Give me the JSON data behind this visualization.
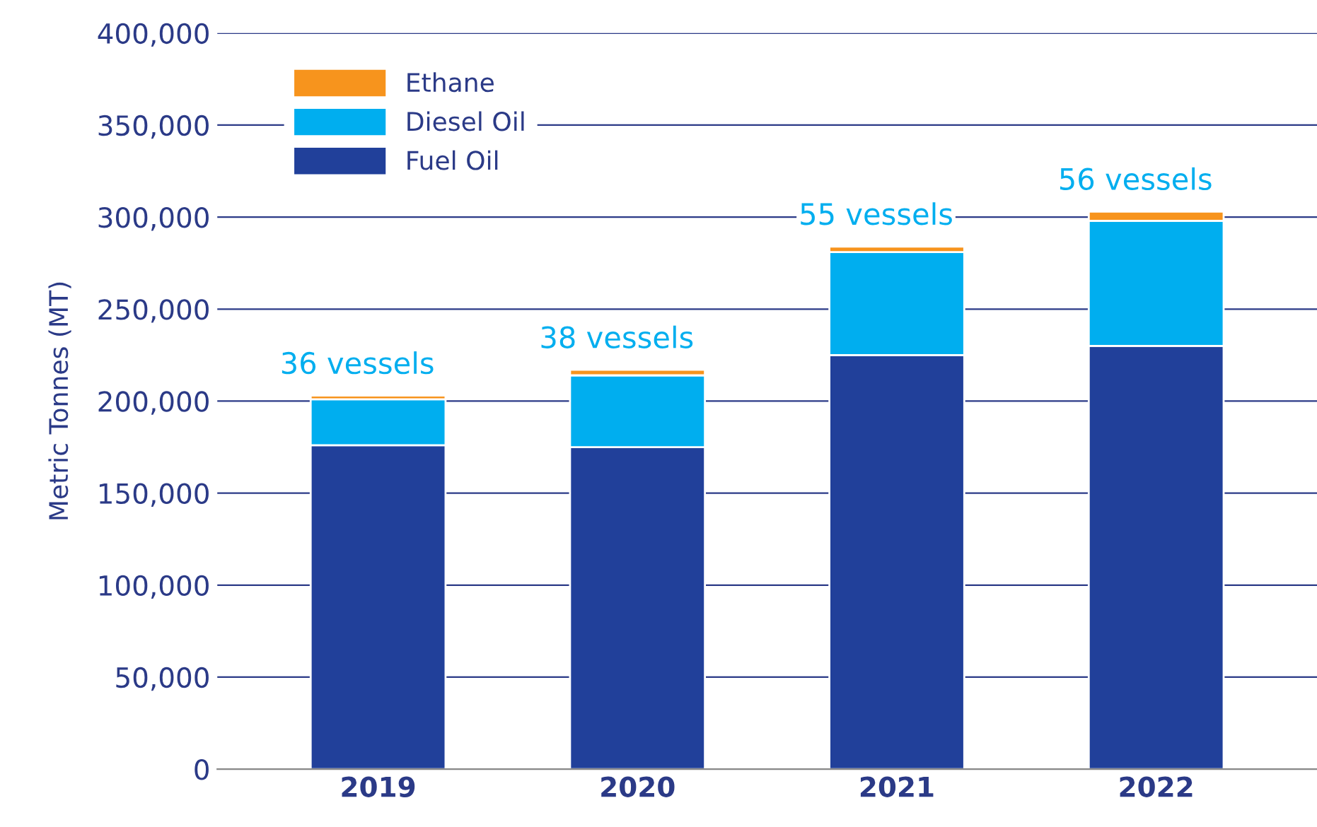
{
  "chart_data": {
    "type": "bar",
    "stacked": true,
    "categories": [
      "2019",
      "2020",
      "2021",
      "2022"
    ],
    "ylabel": "Metric Tonnes (MT)",
    "series": [
      {
        "name": "Fuel Oil",
        "color": "#21409a",
        "values": [
          176000,
          175000,
          225000,
          230000
        ]
      },
      {
        "name": "Diesel Oil",
        "color": "#00aeef",
        "values": [
          25000,
          39000,
          56000,
          68000
        ]
      },
      {
        "name": "Ethane",
        "color": "#f7941d",
        "values": [
          2000,
          3000,
          3000,
          5000
        ]
      }
    ],
    "annotations": [
      {
        "text": "36 vessels",
        "x": "2019",
        "y": 203000
      },
      {
        "text": "38 vessels",
        "x": "2020",
        "y": 217000
      },
      {
        "text": "55 vessels",
        "x": "2021",
        "y": 284000
      },
      {
        "text": "56 vessels",
        "x": "2022",
        "y": 303000
      }
    ],
    "ylim": [
      0,
      400000
    ],
    "yticks": [
      {
        "value": 0,
        "label": "0"
      },
      {
        "value": 50000,
        "label": "50,000"
      },
      {
        "value": 100000,
        "label": "100,000"
      },
      {
        "value": 150000,
        "label": "150,000"
      },
      {
        "value": 200000,
        "label": "200,000"
      },
      {
        "value": 250000,
        "label": "250,000"
      },
      {
        "value": 300000,
        "label": "300,000"
      },
      {
        "value": 350000,
        "label": "350,000"
      },
      {
        "value": 400000,
        "label": "400,000"
      }
    ],
    "grid": "y",
    "legend": "top left"
  }
}
